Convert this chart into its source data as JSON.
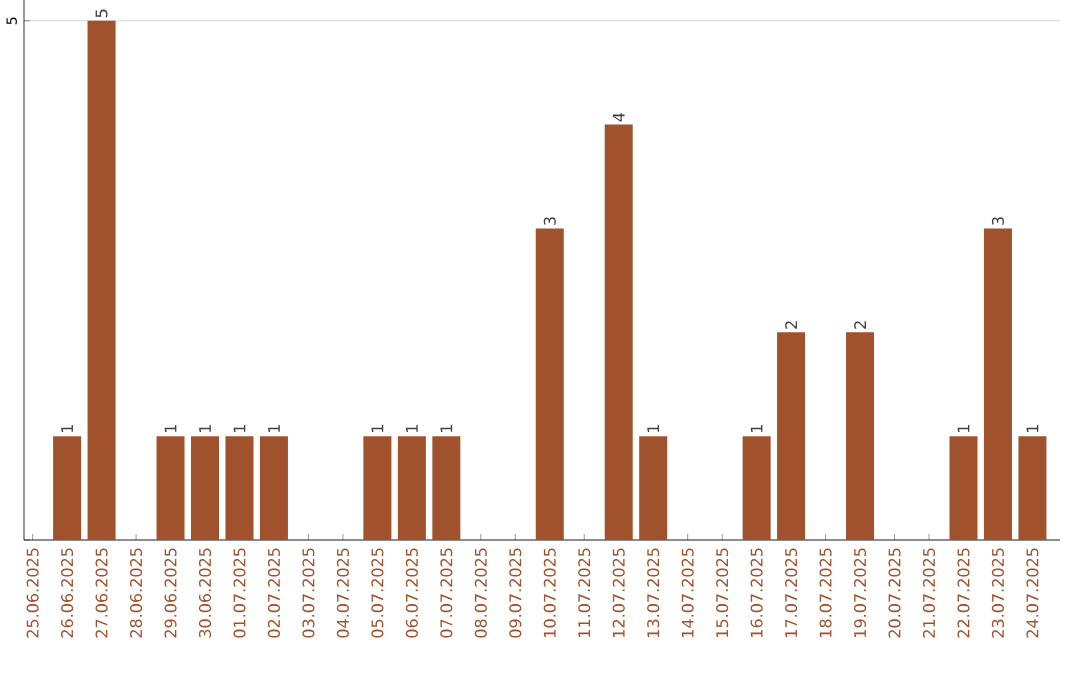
{
  "chart_data": {
    "type": "bar",
    "categories": [
      "25.06.2025",
      "26.06.2025",
      "27.06.2025",
      "28.06.2025",
      "29.06.2025",
      "30.06.2025",
      "01.07.2025",
      "02.07.2025",
      "03.07.2025",
      "04.07.2025",
      "05.07.2025",
      "06.07.2025",
      "07.07.2025",
      "08.07.2025",
      "09.07.2025",
      "10.07.2025",
      "11.07.2025",
      "12.07.2025",
      "13.07.2025",
      "14.07.2025",
      "15.07.2025",
      "16.07.2025",
      "17.07.2025",
      "18.07.2025",
      "19.07.2025",
      "20.07.2025",
      "21.07.2025",
      "22.07.2025",
      "23.07.2025",
      "24.07.2025"
    ],
    "values": [
      0,
      1,
      5,
      0,
      1,
      1,
      1,
      1,
      0,
      0,
      1,
      1,
      1,
      0,
      0,
      3,
      0,
      4,
      1,
      0,
      0,
      1,
      2,
      0,
      2,
      0,
      0,
      1,
      3,
      1
    ],
    "value_labels": [
      null,
      "1",
      "5",
      null,
      "1",
      "1",
      "1",
      "1",
      null,
      null,
      "1",
      "1",
      "1",
      null,
      null,
      "3",
      null,
      "4",
      "1",
      null,
      null,
      "1",
      "2",
      null,
      "2",
      null,
      null,
      "1",
      "3",
      "1"
    ],
    "color": "#a0522d",
    "ylim": [
      0,
      5.2
    ],
    "yticks": [
      {
        "value": 0,
        "label": null
      },
      5
    ],
    "grid": "y"
  }
}
